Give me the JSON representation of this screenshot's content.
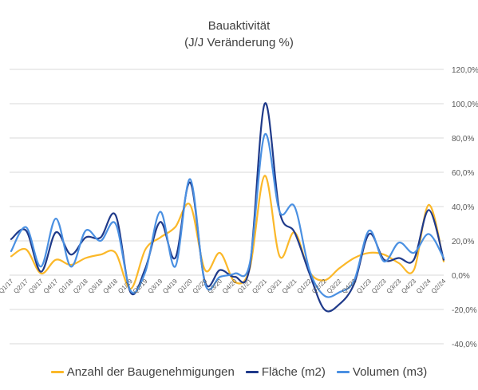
{
  "chart_data": {
    "type": "line",
    "title": "Bauaktivität",
    "subtitle": "(J/J Veränderung %)",
    "xlabel": "",
    "ylabel": "",
    "ylim": [
      -40,
      120
    ],
    "yticks": [
      120,
      100,
      80,
      60,
      40,
      20,
      0,
      -20,
      -40
    ],
    "ytick_labels": [
      "120,0%",
      "100,0%",
      "80,0%",
      "60,0%",
      "40,0%",
      "20,0%",
      "0,0%",
      "-20,0%",
      "-40,0%"
    ],
    "y_axis_side": "right",
    "grid": true,
    "legend_position": "bottom",
    "categories": [
      "Q1/17",
      "Q2/17",
      "Q3/17",
      "Q4/17",
      "Q1/18",
      "Q2/18",
      "Q3/18",
      "Q4/18",
      "Q1/19",
      "Q2/19",
      "Q3/19",
      "Q4/19",
      "Q1/20",
      "Q2/20",
      "Q3/20",
      "Q4/20",
      "Q1/21",
      "Q2/21",
      "Q3/21",
      "Q4/21",
      "Q1/22",
      "Q2/22",
      "Q3/22",
      "Q4/22",
      "Q1/23",
      "Q2/23",
      "Q3/23",
      "Q4/23",
      "Q1/24",
      "Q2/24"
    ],
    "series": [
      {
        "name": "Anzahl der Baugenehmigungen",
        "color": "#fbb829",
        "values": [
          11,
          15,
          1,
          9,
          6,
          10,
          12,
          13,
          -8,
          15,
          22,
          28,
          41,
          3,
          13,
          -4,
          4,
          58,
          11,
          25,
          2,
          -3,
          4,
          10,
          13,
          12,
          7,
          3,
          41,
          8
        ]
      },
      {
        "name": "Fläche (m2)",
        "color": "#1f3a8a",
        "values": [
          21,
          26,
          2,
          25,
          12,
          22,
          22,
          35,
          -10,
          4,
          31,
          10,
          54,
          -4,
          3,
          -1,
          5,
          100,
          37,
          25,
          1,
          -20,
          -17,
          -5,
          24,
          9,
          10,
          9,
          38,
          9
        ]
      },
      {
        "name": "Volumen (m3)",
        "color": "#4a90e2",
        "values": [
          14,
          28,
          5,
          33,
          5,
          26,
          20,
          30,
          -9,
          2,
          37,
          5,
          56,
          -5,
          -1,
          1,
          7,
          82,
          37,
          40,
          3,
          -12,
          -10,
          -3,
          26,
          8,
          19,
          13,
          24,
          10
        ]
      }
    ]
  }
}
